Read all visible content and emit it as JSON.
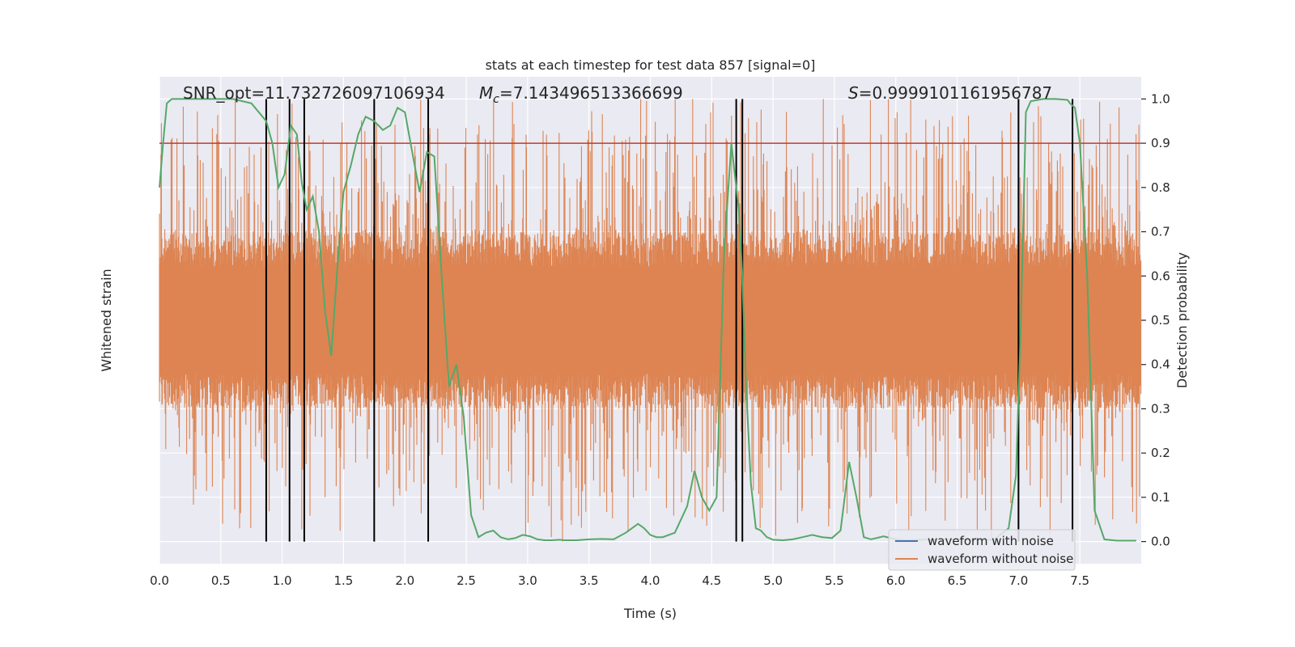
{
  "chart_data": {
    "type": "line",
    "title": "stats at each timestep for test data 857 [signal=0]",
    "xlabel": "Time (s)",
    "ylabel_left": "Whitened strain",
    "ylabel_right": "Detection probability",
    "xlim": [
      0.0,
      8.0
    ],
    "ylim_right": [
      -0.05,
      1.05
    ],
    "x_ticks": [
      "0.0",
      "0.5",
      "1.0",
      "1.5",
      "2.0",
      "2.5",
      "3.0",
      "3.5",
      "4.0",
      "4.5",
      "5.0",
      "5.5",
      "6.0",
      "6.5",
      "7.0",
      "7.5"
    ],
    "y_ticks_right": [
      "0.0",
      "0.1",
      "0.2",
      "0.3",
      "0.4",
      "0.5",
      "0.6",
      "0.7",
      "0.8",
      "0.9",
      "1.0"
    ],
    "annotations": {
      "snr": "SNR_opt=11.732726097106934",
      "mc_symbol": "M",
      "mc_sub": "c",
      "mc_value": "=7.143496513366699",
      "s_symbol": "S",
      "s_value": "=0.9999101161956787"
    },
    "threshold": 0.9,
    "threshold_color": "#c0392b",
    "detection_probability": {
      "color": "#55a868",
      "x": [
        0.0,
        0.03,
        0.06,
        0.1,
        0.2,
        0.4,
        0.6,
        0.75,
        0.87,
        0.92,
        0.97,
        1.02,
        1.07,
        1.12,
        1.16,
        1.2,
        1.25,
        1.3,
        1.35,
        1.4,
        1.45,
        1.5,
        1.56,
        1.62,
        1.68,
        1.75,
        1.82,
        1.88,
        1.94,
        2.0,
        2.06,
        2.12,
        2.18,
        2.24,
        2.3,
        2.36,
        2.42,
        2.48,
        2.54,
        2.6,
        2.66,
        2.72,
        2.78,
        2.84,
        2.9,
        2.96,
        3.02,
        3.08,
        3.14,
        3.2,
        3.26,
        3.3,
        3.4,
        3.5,
        3.6,
        3.7,
        3.8,
        3.9,
        3.95,
        4.0,
        4.05,
        4.1,
        4.2,
        4.3,
        4.36,
        4.42,
        4.48,
        4.54,
        4.6,
        4.66,
        4.72,
        4.75,
        4.78,
        4.82,
        4.86,
        4.9,
        4.95,
        5.0,
        5.08,
        5.16,
        5.24,
        5.32,
        5.4,
        5.48,
        5.55,
        5.62,
        5.68,
        5.74,
        5.8,
        5.9,
        6.0,
        6.1,
        6.2,
        6.4,
        6.6,
        6.8,
        6.92,
        6.98,
        7.02,
        7.06,
        7.1,
        7.2,
        7.3,
        7.4,
        7.42,
        7.46,
        7.5,
        7.56,
        7.62,
        7.7,
        7.8,
        7.96
      ],
      "y": [
        0.8,
        0.9,
        0.99,
        1.0,
        1.0,
        1.0,
        1.0,
        0.99,
        0.95,
        0.9,
        0.8,
        0.83,
        0.94,
        0.92,
        0.81,
        0.75,
        0.78,
        0.7,
        0.52,
        0.42,
        0.62,
        0.79,
        0.85,
        0.92,
        0.96,
        0.95,
        0.93,
        0.94,
        0.98,
        0.97,
        0.88,
        0.79,
        0.88,
        0.87,
        0.6,
        0.35,
        0.4,
        0.28,
        0.06,
        0.01,
        0.02,
        0.025,
        0.01,
        0.005,
        0.008,
        0.015,
        0.012,
        0.005,
        0.003,
        0.003,
        0.004,
        0.003,
        0.003,
        0.005,
        0.006,
        0.005,
        0.02,
        0.04,
        0.03,
        0.015,
        0.01,
        0.01,
        0.02,
        0.08,
        0.16,
        0.1,
        0.07,
        0.1,
        0.65,
        0.9,
        0.75,
        0.6,
        0.35,
        0.13,
        0.03,
        0.025,
        0.01,
        0.004,
        0.003,
        0.005,
        0.01,
        0.015,
        0.01,
        0.008,
        0.025,
        0.18,
        0.1,
        0.01,
        0.005,
        0.012,
        0.005,
        0.003,
        0.004,
        0.005,
        0.004,
        0.004,
        0.03,
        0.15,
        0.5,
        0.97,
        0.995,
        1.0,
        1.0,
        0.998,
        0.99,
        0.98,
        0.9,
        0.6,
        0.07,
        0.005,
        0.002,
        0.002
      ]
    },
    "vlines_x": [
      0.87,
      1.06,
      1.18,
      1.75,
      2.19,
      4.7,
      4.75,
      7.0,
      7.44
    ],
    "vline_color": "#000000",
    "strain": {
      "color": "#dd8452",
      "center": 0.5,
      "half_band": 0.16,
      "spike_max": 0.5
    },
    "legend": {
      "location": "lower-right",
      "entries": [
        {
          "label": "waveform with noise",
          "color": "#4c72b0"
        },
        {
          "label": "waveform without noise",
          "color": "#dd8452"
        }
      ]
    },
    "grid": true,
    "axes_face_color": "#eaeaf2"
  }
}
